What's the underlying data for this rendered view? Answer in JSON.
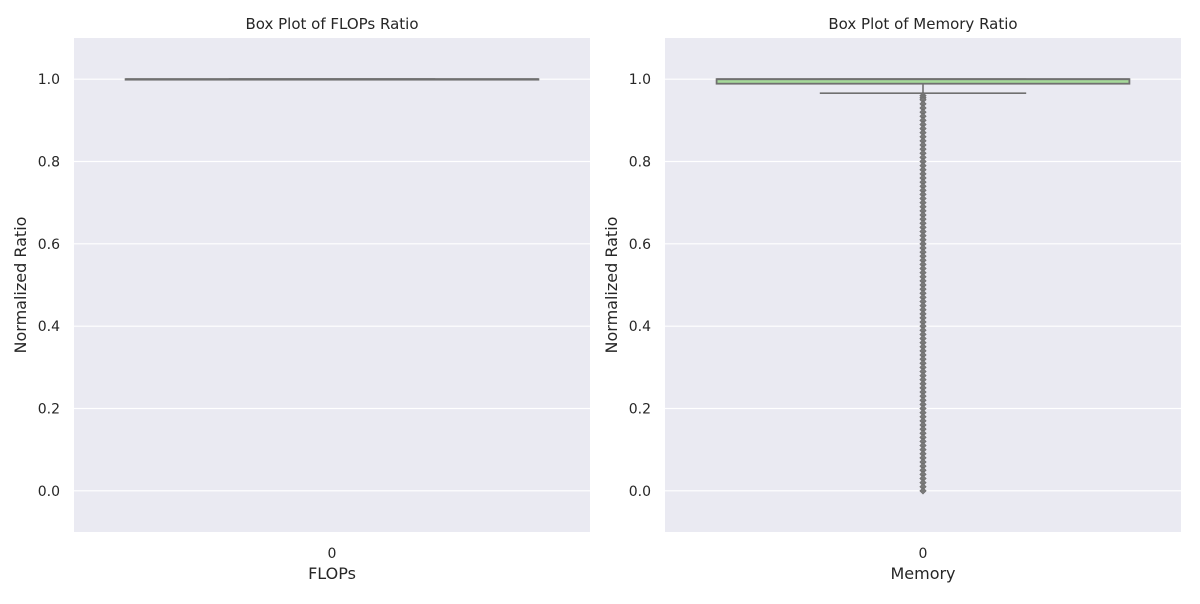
{
  "chart_data": [
    {
      "type": "box",
      "title": "Box Plot of FLOPs Ratio",
      "xlabel": "FLOPs",
      "ylabel": "Normalized Ratio",
      "categories": [
        "0"
      ],
      "ylim": [
        -0.1,
        1.1
      ],
      "yticks": [
        "0.0",
        "0.2",
        "0.4",
        "0.6",
        "0.8",
        "1.0"
      ],
      "ytick_values": [
        0.0,
        0.2,
        0.4,
        0.6,
        0.8,
        1.0
      ],
      "grid": true,
      "box": {
        "min": 1.0,
        "q1": 1.0,
        "median": 1.0,
        "q3": 1.0,
        "max": 1.0
      },
      "outliers": [],
      "colors": {
        "box": "#a6d99a",
        "line": "#707070",
        "background": "#eaeaf2"
      }
    },
    {
      "type": "box",
      "title": "Box Plot of Memory Ratio",
      "xlabel": "Memory",
      "ylabel": "Normalized Ratio",
      "categories": [
        "0"
      ],
      "ylim": [
        -0.1,
        1.1
      ],
      "yticks": [
        "0.0",
        "0.2",
        "0.4",
        "0.6",
        "0.8",
        "1.0"
      ],
      "ytick_values": [
        0.0,
        0.2,
        0.4,
        0.6,
        0.8,
        1.0
      ],
      "grid": true,
      "box": {
        "min": 0.966,
        "q1": 0.989,
        "median": 1.0,
        "q3": 1.0,
        "max": 1.0
      },
      "outliers": [
        0.96,
        0.955,
        0.95,
        0.94,
        0.93,
        0.92,
        0.91,
        0.9,
        0.89,
        0.88,
        0.87,
        0.86,
        0.85,
        0.84,
        0.83,
        0.82,
        0.81,
        0.8,
        0.79,
        0.78,
        0.77,
        0.76,
        0.75,
        0.74,
        0.73,
        0.72,
        0.71,
        0.7,
        0.69,
        0.68,
        0.67,
        0.66,
        0.65,
        0.64,
        0.63,
        0.62,
        0.61,
        0.6,
        0.59,
        0.58,
        0.57,
        0.56,
        0.55,
        0.54,
        0.53,
        0.52,
        0.51,
        0.5,
        0.49,
        0.48,
        0.47,
        0.46,
        0.45,
        0.44,
        0.43,
        0.42,
        0.41,
        0.4,
        0.39,
        0.38,
        0.37,
        0.36,
        0.35,
        0.34,
        0.33,
        0.32,
        0.31,
        0.3,
        0.29,
        0.28,
        0.27,
        0.26,
        0.25,
        0.24,
        0.23,
        0.22,
        0.21,
        0.2,
        0.19,
        0.18,
        0.17,
        0.16,
        0.15,
        0.14,
        0.13,
        0.12,
        0.11,
        0.1,
        0.09,
        0.08,
        0.07,
        0.06,
        0.05,
        0.04,
        0.03,
        0.02,
        0.01,
        0.0
      ],
      "colors": {
        "box": "#a6d99a",
        "line": "#707070",
        "background": "#eaeaf2"
      }
    }
  ]
}
